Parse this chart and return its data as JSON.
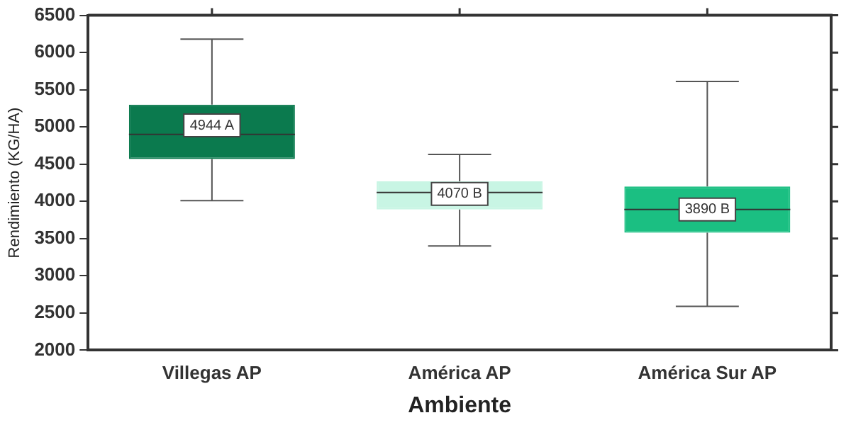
{
  "chart_data": {
    "type": "box",
    "xlabel": "Ambiente",
    "ylabel": "Rendimiento (KG/HA)",
    "categories": [
      "Villegas AP",
      "América AP",
      "América Sur AP"
    ],
    "boxes": [
      {
        "low": 4010,
        "q1": 4570,
        "median": 4900,
        "q3": 5300,
        "high": 6180
      },
      {
        "low": 3400,
        "q1": 3890,
        "median": 4120,
        "q3": 4270,
        "high": 4630
      },
      {
        "low": 2590,
        "q1": 3580,
        "median": 3890,
        "q3": 4200,
        "high": 5610
      }
    ],
    "colors": [
      "#0b7a4e",
      "#c8f5e4",
      "#1bbf82"
    ],
    "ylim": [
      2000,
      6500
    ],
    "yticks": [
      2000,
      2500,
      3000,
      3500,
      4000,
      4500,
      5000,
      5500,
      6000,
      6500
    ],
    "grid": false,
    "annotations": [
      {
        "text": "4944 A",
        "x": "Villegas AP",
        "y": 5020
      },
      {
        "text": "4070 B",
        "x": "América AP",
        "y": 4100
      },
      {
        "text": "3890 B",
        "x": "América Sur AP",
        "y": 3890
      }
    ]
  }
}
